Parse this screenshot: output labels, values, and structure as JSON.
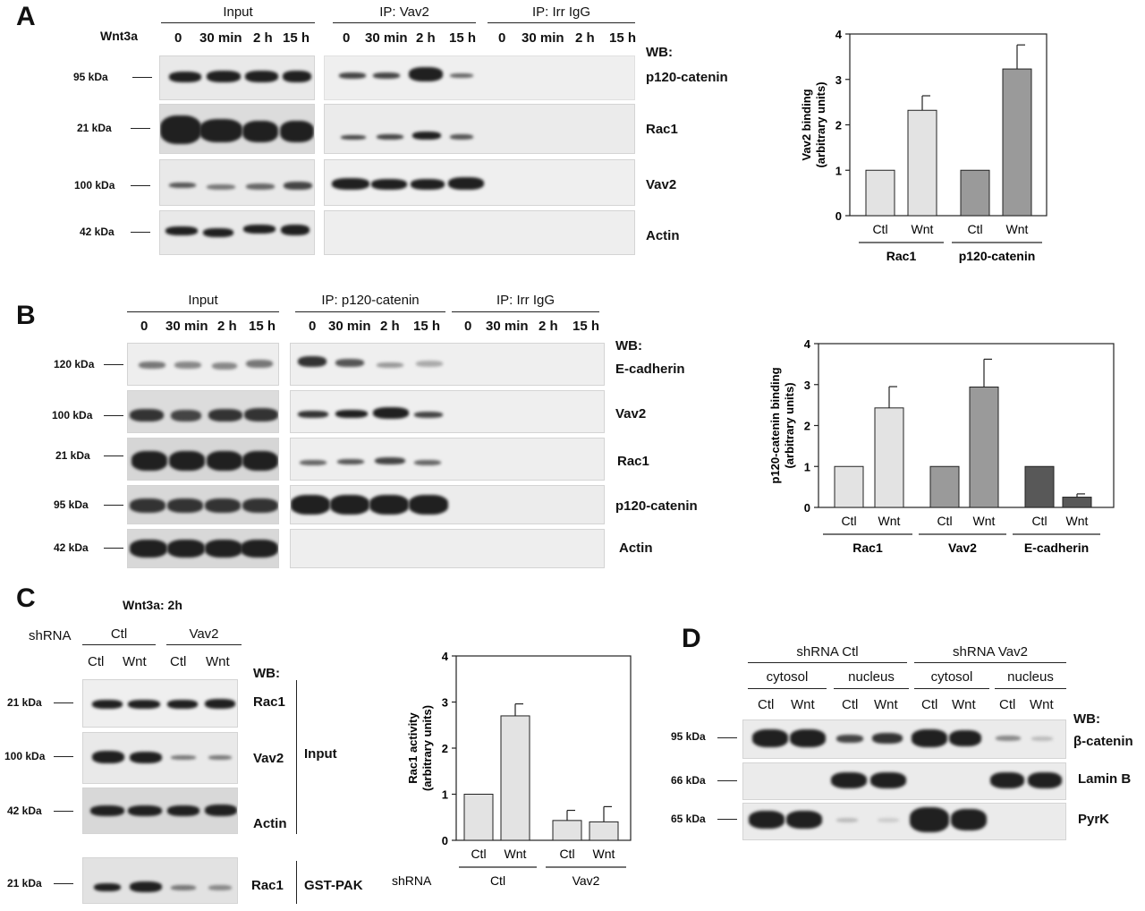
{
  "panelA": {
    "letter": "A",
    "treatment_label": "Wnt3a",
    "groups": [
      "Input",
      "IP: Vav2",
      "IP: Irr IgG"
    ],
    "timepoints": [
      "0",
      "30 min",
      "2 h",
      "15 h"
    ],
    "wb_label": "WB:",
    "rows": [
      {
        "kda": "95 kDa",
        "label": "p120-catenin"
      },
      {
        "kda": "21 kDa",
        "label": "Rac1"
      },
      {
        "kda": "100 kDa",
        "label": "Vav2"
      },
      {
        "kda": "42 kDa",
        "label": "Actin"
      }
    ]
  },
  "panelB": {
    "letter": "B",
    "groups": [
      "Input",
      "IP:  p120-catenin",
      "IP: Irr IgG"
    ],
    "timepoints": [
      "0",
      "30 min",
      "2 h",
      "15 h"
    ],
    "wb_label": "WB:",
    "rows": [
      {
        "kda": "120 kDa",
        "label": "E-cadherin"
      },
      {
        "kda": "100 kDa",
        "label": "Vav2"
      },
      {
        "kda": "21 kDa",
        "label": "Rac1"
      },
      {
        "kda": "95 kDa",
        "label": "p120-catenin"
      },
      {
        "kda": "42 kDa",
        "label": "Actin"
      }
    ]
  },
  "panelC": {
    "letter": "C",
    "treatment_label": "Wnt3a: 2h",
    "shrna_label": "shRNA",
    "groups": [
      "Ctl",
      "Vav2"
    ],
    "lanes": [
      "Ctl",
      "Wnt",
      "Ctl",
      "Wnt"
    ],
    "wb_label": "WB:",
    "rows": [
      {
        "kda": "21 kDa",
        "label": "Rac1"
      },
      {
        "kda": "100 kDa",
        "label": "Vav2"
      },
      {
        "kda": "42 kDa",
        "label": "Actin"
      },
      {
        "kda": "21 kDa",
        "label": "Rac1"
      }
    ],
    "bracket_input": "Input",
    "bracket_pulldown": "GST-PAK"
  },
  "panelD": {
    "letter": "D",
    "groups": [
      "shRNA  Ctl",
      "shRNA  Vav2"
    ],
    "fractions": [
      "cytosol",
      "nucleus",
      "cytosol",
      "nucleus"
    ],
    "lanes": [
      "Ctl",
      "Wnt",
      "Ctl",
      "Wnt",
      "Ctl",
      "Wnt",
      "Ctl",
      "Wnt"
    ],
    "wb_label": "WB:",
    "rows": [
      {
        "kda": "95 kDa",
        "label": "β-catenin"
      },
      {
        "kda": "66 kDa",
        "label": "Lamin B"
      },
      {
        "kda": "65 kDa",
        "label": "PyrK"
      }
    ]
  },
  "chart_data": [
    {
      "type": "bar",
      "panel": "A",
      "ylabel": "Vav2 binding\n(arbitrary units)",
      "ylim": [
        0,
        4
      ],
      "yticks": [
        "0",
        "1",
        "2",
        "3",
        "4"
      ],
      "categories": [
        "Ctl",
        "Wnt",
        "Ctl",
        "Wnt"
      ],
      "groups": [
        "Rac1",
        "p120-catenin"
      ],
      "values": [
        1.0,
        2.32,
        1.0,
        3.23
      ],
      "errors": [
        0,
        0.32,
        0,
        0.53
      ],
      "colors": [
        "#e3e3e3",
        "#e3e3e3",
        "#9a9a9a",
        "#9a9a9a"
      ]
    },
    {
      "type": "bar",
      "panel": "B",
      "ylabel": "p120-catenin binding\n(arbitrary units)",
      "ylim": [
        0,
        4
      ],
      "yticks": [
        "0",
        "1",
        "2",
        "3",
        "4"
      ],
      "categories": [
        "Ctl",
        "Wnt",
        "Ctl",
        "Wnt",
        "Ctl",
        "Wnt"
      ],
      "groups": [
        "Rac1",
        "Vav2",
        "E-cadherin"
      ],
      "values": [
        1.0,
        2.43,
        1.0,
        2.94,
        1.0,
        0.25
      ],
      "errors": [
        0,
        0.52,
        0,
        0.68,
        0,
        0.08
      ],
      "colors": [
        "#e3e3e3",
        "#e3e3e3",
        "#9a9a9a",
        "#9a9a9a",
        "#585858",
        "#585858"
      ]
    },
    {
      "type": "bar",
      "panel": "C",
      "ylabel": "Rac1 activity\n(arbitrary units)",
      "ylim": [
        0,
        4
      ],
      "yticks": [
        "0",
        "1",
        "2",
        "3",
        "4"
      ],
      "xlabel_prefix": "shRNA",
      "categories": [
        "Ctl",
        "Wnt",
        "Ctl",
        "Wnt"
      ],
      "groups": [
        "Ctl",
        "Vav2"
      ],
      "values": [
        1.0,
        2.7,
        0.43,
        0.4
      ],
      "errors": [
        0,
        0.26,
        0.22,
        0.33
      ],
      "colors": [
        "#e3e3e3",
        "#e3e3e3",
        "#e3e3e3",
        "#e3e3e3"
      ]
    }
  ]
}
